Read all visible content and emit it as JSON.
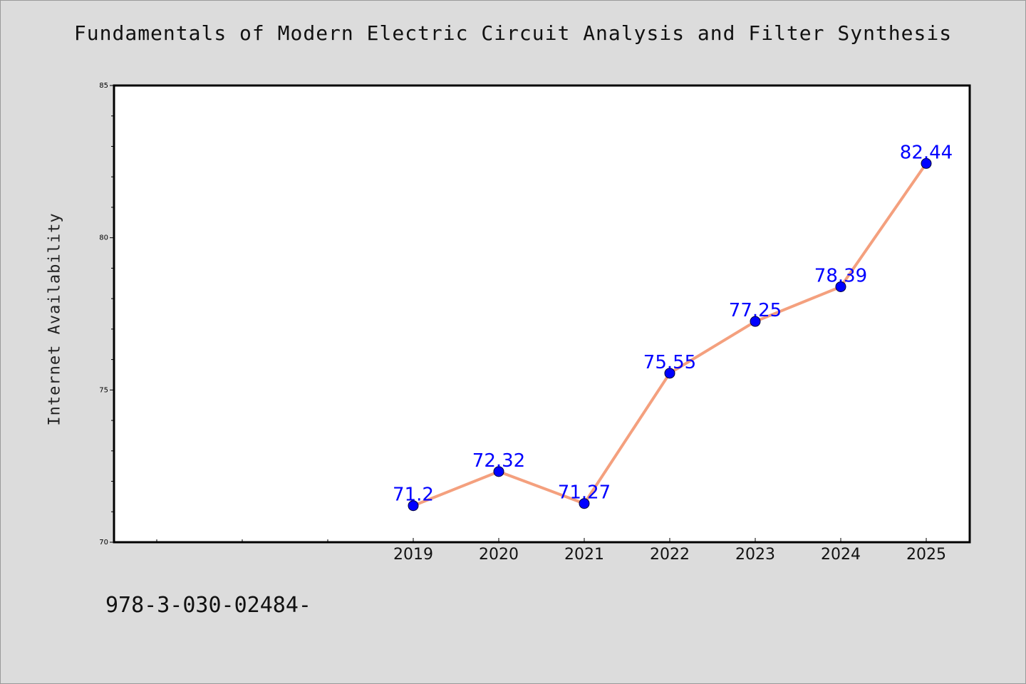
{
  "chart_data": {
    "type": "line",
    "title": "Fundamentals of Modern Electric Circuit Analysis and Filter Synthesis",
    "xlabel": "",
    "ylabel": "Internet Availability",
    "categories": [
      "2019",
      "2020",
      "2021",
      "2022",
      "2023",
      "2024",
      "2025"
    ],
    "values": [
      71.2,
      72.32,
      71.27,
      75.55,
      77.25,
      78.39,
      82.44
    ],
    "data_labels": [
      "71.2",
      "72.32",
      "71.27",
      "75.55",
      "77.25",
      "78.39",
      "82.44"
    ],
    "y_ticks": [
      "70",
      "75",
      "80",
      "85"
    ],
    "ylim": [
      70,
      85
    ],
    "grid": false,
    "line_color": "#f4a07e",
    "marker_color": "#0000ff",
    "label_color": "#0000ff"
  },
  "footer": {
    "code": "978-3-030-02484-"
  }
}
